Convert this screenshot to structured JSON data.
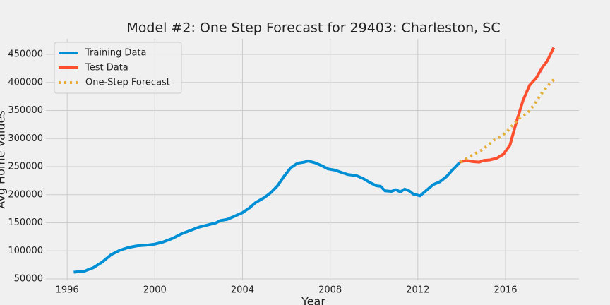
{
  "chart_data": {
    "type": "line",
    "title": "Model #2: One Step Forecast for 29403: Charleston, SC",
    "x_label": "Year",
    "y_label": "Avg Home Values",
    "xlim": [
      1995.03,
      2019.35
    ],
    "xticks": [
      1996,
      2000,
      2004,
      2008,
      2012,
      2016
    ],
    "ylim": [
      47500,
      477700
    ],
    "yticks": [
      50000,
      100000,
      150000,
      200000,
      250000,
      300000,
      350000,
      400000,
      450000
    ],
    "grid": true,
    "legend": "upper left",
    "series": [
      {
        "name": "Training Data",
        "color": "#008fd5",
        "line_style": "solid",
        "x": [
          1996.3,
          1996.8,
          1997.2,
          1997.6,
          1998.0,
          1998.4,
          1998.8,
          1999.2,
          1999.6,
          2000.0,
          2000.4,
          2000.8,
          2001.2,
          2001.6,
          2002.0,
          2002.4,
          2002.8,
          2003.0,
          2003.3,
          2003.6,
          2004.0,
          2004.3,
          2004.6,
          2005.0,
          2005.3,
          2005.6,
          2005.9,
          2006.2,
          2006.5,
          2006.8,
          2007.0,
          2007.3,
          2007.6,
          2007.9,
          2008.2,
          2008.5,
          2008.8,
          2009.2,
          2009.5,
          2009.8,
          2010.1,
          2010.3,
          2010.5,
          2010.8,
          2011.0,
          2011.2,
          2011.4,
          2011.6,
          2011.8,
          2012.1,
          2012.4,
          2012.7,
          2013.0,
          2013.3,
          2013.6,
          2013.9
        ],
        "values": [
          62000,
          64000,
          70000,
          80000,
          93000,
          101000,
          106000,
          109000,
          110000,
          112000,
          116000,
          122000,
          130000,
          136000,
          142000,
          146000,
          150000,
          154000,
          156000,
          161000,
          168000,
          176000,
          186000,
          195000,
          204000,
          216000,
          233000,
          248000,
          256000,
          258000,
          260000,
          257000,
          252000,
          246000,
          244000,
          240000,
          236000,
          234000,
          229000,
          222000,
          216000,
          215000,
          207000,
          206000,
          209000,
          205000,
          210000,
          207000,
          201000,
          198000,
          208000,
          218000,
          223000,
          232000,
          245000,
          257000
        ]
      },
      {
        "name": "Test Data",
        "color": "#fc4f30",
        "line_style": "solid",
        "x": [
          2013.9,
          2014.2,
          2014.5,
          2014.8,
          2015.0,
          2015.3,
          2015.6,
          2015.9,
          2016.2,
          2016.5,
          2016.8,
          2017.1,
          2017.4,
          2017.7,
          2017.9,
          2018.2
        ],
        "values": [
          258000,
          261000,
          259000,
          258000,
          261000,
          262000,
          265000,
          272000,
          288000,
          330000,
          368000,
          395000,
          408000,
          428000,
          438000,
          462000
        ]
      },
      {
        "name": "One-Step Forecast",
        "color": "#e5ae38",
        "line_style": "dotted",
        "x": [
          2013.95,
          2014.3,
          2014.6,
          2014.9,
          2015.2,
          2015.5,
          2015.8,
          2016.1,
          2016.4,
          2016.7,
          2017.0,
          2017.3,
          2017.6,
          2017.9,
          2018.2
        ],
        "values": [
          258000,
          266000,
          273000,
          279000,
          288000,
          298000,
          304000,
          314000,
          327000,
          339000,
          345000,
          360000,
          378000,
          393000,
          405000
        ]
      }
    ]
  }
}
